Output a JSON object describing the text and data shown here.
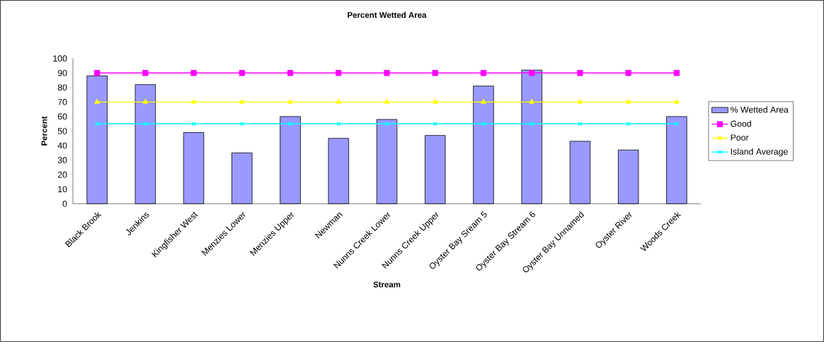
{
  "chart_data": {
    "type": "bar",
    "title": "Percent Wetted Area",
    "xlabel": "Stream",
    "ylabel": "Percent",
    "categories": [
      "Black Brook",
      "Jenkins",
      "Kingfisher West",
      "Menzies Lower",
      "Menzies Upper",
      "Newman",
      "Nunns Creek Lower",
      "Nunns Creek Upper",
      "Oyster Bay Sream 5",
      "Oyster Bay Stream 6",
      "Oyster Bay Unnamed",
      "Oyster River",
      "Woods Creek"
    ],
    "series": [
      {
        "name": "% Wetted Area",
        "color": "#9999ff",
        "values": [
          88,
          82,
          49,
          35,
          60,
          45,
          58,
          47,
          81,
          92,
          43,
          37,
          60
        ]
      },
      {
        "name": "Good",
        "type": "line",
        "color": "#ff00ff",
        "marker": "square",
        "values": [
          90,
          90,
          90,
          90,
          90,
          90,
          90,
          90,
          90,
          90,
          90,
          90,
          90
        ]
      },
      {
        "name": "Poor",
        "type": "line",
        "color": "#ffff00",
        "marker": "triangle",
        "values": [
          70,
          70,
          70,
          70,
          70,
          70,
          70,
          70,
          70,
          70,
          70,
          70,
          70
        ]
      },
      {
        "name": "Island Average",
        "type": "line",
        "color": "#00ffff",
        "marker": "cross",
        "values": [
          55,
          55,
          55,
          55,
          55,
          55,
          55,
          55,
          55,
          55,
          55,
          55,
          55
        ]
      }
    ],
    "ylim": [
      0,
      100
    ],
    "yticks": [
      0,
      10,
      20,
      30,
      40,
      50,
      60,
      70,
      80,
      90,
      100
    ],
    "legend": "right"
  }
}
